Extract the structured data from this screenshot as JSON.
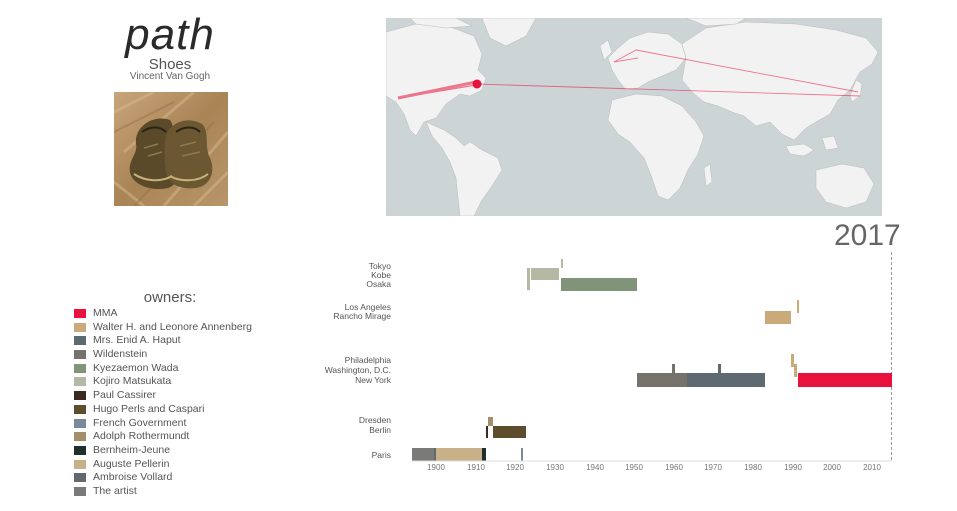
{
  "header": {
    "app_title": "path",
    "artwork_title": "Shoes",
    "artist": "Vincent Van Gogh"
  },
  "timeline": {
    "current_year": "2017",
    "owners_heading": "owners:",
    "x_ticks": [
      "1900",
      "1910",
      "1920",
      "1930",
      "1940",
      "1950",
      "1960",
      "1970",
      "1980",
      "1990",
      "2000",
      "2010"
    ],
    "locations": [
      {
        "id": "tokyo",
        "label": "Tokyo"
      },
      {
        "id": "kobe",
        "label": "Kobe"
      },
      {
        "id": "osaka",
        "label": "Osaka"
      },
      {
        "id": "los_angeles",
        "label": "Los Angeles"
      },
      {
        "id": "rancho_mirage",
        "label": "Rancho Mirage"
      },
      {
        "id": "philadelphia",
        "label": "Philadelphia"
      },
      {
        "id": "washington",
        "label": "Washington, D.C."
      },
      {
        "id": "new_york",
        "label": "New York"
      },
      {
        "id": "dresden",
        "label": "Dresden"
      },
      {
        "id": "berlin",
        "label": "Berlin"
      },
      {
        "id": "paris",
        "label": "Paris"
      }
    ]
  },
  "owners": [
    {
      "name": "MMA",
      "color": "#e8123c"
    },
    {
      "name": "Walter H. and Leonore Annenberg",
      "color": "#c9aa78"
    },
    {
      "name": "Mrs. Enid A. Haput",
      "color": "#5e6a72"
    },
    {
      "name": "Wildenstein",
      "color": "#75716b"
    },
    {
      "name": "Kyezaemon Wada",
      "color": "#7f9479"
    },
    {
      "name": "Kojiro Matsukata",
      "color": "#b5b8a3"
    },
    {
      "name": "Paul Cassirer",
      "color": "#3b2a20"
    },
    {
      "name": "Hugo Perls and Caspari",
      "color": "#5e4d2d"
    },
    {
      "name": "French Government",
      "color": "#7b8a9a"
    },
    {
      "name": "Adolph Rothermundt",
      "color": "#a3906a"
    },
    {
      "name": "Bernheim-Jeune",
      "color": "#1f2f2e"
    },
    {
      "name": "Auguste Pellerin",
      "color": "#c8b088"
    },
    {
      "name": "Ambroise Vollard",
      "color": "#62686b"
    },
    {
      "name": "The artist",
      "color": "#7a7a78"
    }
  ]
}
